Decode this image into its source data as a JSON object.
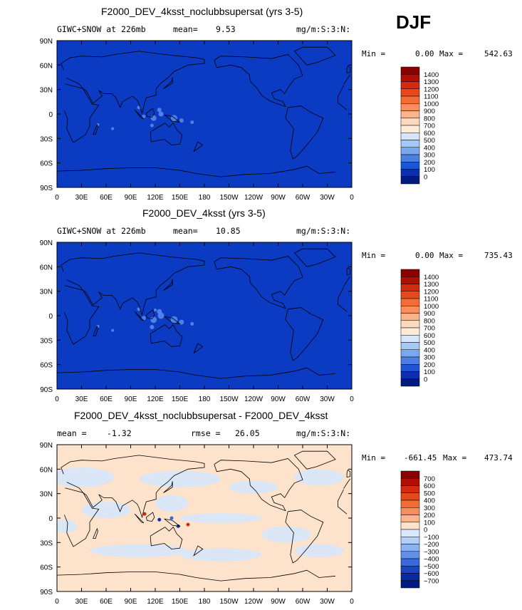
{
  "season": "DJF",
  "chart_data": [
    {
      "type": "heatmap",
      "title": "F2000_DEV_4ksst_noclubbsupersat (yrs 3-5)",
      "field_label": "GIWC+SNOW at 226mb",
      "mean_label": "mean=",
      "mean_value": "9.53",
      "units": "mg/m:S:3:N:",
      "min_label": "Min =",
      "min_value": "0.00",
      "max_label": "Max =",
      "max_value": "542.63",
      "x_ticks": [
        "0",
        "30E",
        "60E",
        "90E",
        "120E",
        "150E",
        "180",
        "150W",
        "120W",
        "90W",
        "60W",
        "30W",
        "0"
      ],
      "y_ticks": [
        "90N",
        "60N",
        "30N",
        "0",
        "30S",
        "60S",
        "90S"
      ],
      "colorbar_labels": [
        "1400",
        "1300",
        "1200",
        "1100",
        "1000",
        "900",
        "800",
        "700",
        "600",
        "500",
        "400",
        "300",
        "200",
        "100",
        "0"
      ],
      "colorbar_colors": [
        "#8b0000",
        "#b00f05",
        "#d42a0e",
        "#e8491c",
        "#f36b35",
        "#f98d5c",
        "#fcb48d",
        "#fdd9bd",
        "#fdebd8",
        "#d6e6fa",
        "#a6c8f5",
        "#7aa7ee",
        "#4a7fe3",
        "#1f55d4",
        "#0b2fb0",
        "#001a80"
      ],
      "background_color": "#0b3bc2"
    },
    {
      "type": "heatmap",
      "title": "F2000_DEV_4ksst (yrs 3-5)",
      "field_label": "GIWC+SNOW at 226mb",
      "mean_label": "mean=",
      "mean_value": "10.85",
      "units": "mg/m:S:3:N:",
      "min_label": "Min =",
      "min_value": "0.00",
      "max_label": "Max =",
      "max_value": "735.43",
      "x_ticks": [
        "0",
        "30E",
        "60E",
        "90E",
        "120E",
        "150E",
        "180",
        "150W",
        "120W",
        "90W",
        "60W",
        "30W",
        "0"
      ],
      "y_ticks": [
        "90N",
        "60N",
        "30N",
        "0",
        "30S",
        "60S",
        "90S"
      ],
      "colorbar_labels": [
        "1400",
        "1300",
        "1200",
        "1100",
        "1000",
        "900",
        "800",
        "700",
        "600",
        "500",
        "400",
        "300",
        "200",
        "100",
        "0"
      ],
      "colorbar_colors": [
        "#8b0000",
        "#b00f05",
        "#d42a0e",
        "#e8491c",
        "#f36b35",
        "#f98d5c",
        "#fcb48d",
        "#fdd9bd",
        "#fdebd8",
        "#d6e6fa",
        "#a6c8f5",
        "#7aa7ee",
        "#4a7fe3",
        "#1f55d4",
        "#0b2fb0",
        "#001a80"
      ],
      "background_color": "#0b3bc2"
    },
    {
      "type": "heatmap",
      "title": "F2000_DEV_4ksst_noclubbsupersat - F2000_DEV_4ksst",
      "field_label": "mean =",
      "mean_value": "-1.32",
      "rmse_label": "rmse =",
      "rmse_value": "26.05",
      "units": "mg/m:S:3:N:",
      "min_label": "Min =",
      "min_value": "-661.45",
      "max_label": "Max =",
      "max_value": "473.74",
      "x_ticks": [
        "0",
        "30E",
        "60E",
        "90E",
        "120E",
        "150E",
        "180",
        "150W",
        "120W",
        "90W",
        "60W",
        "30W",
        "0"
      ],
      "y_ticks": [
        "90N",
        "60N",
        "30N",
        "0",
        "30S",
        "60S",
        "90S"
      ],
      "colorbar_labels": [
        "700",
        "600",
        "500",
        "400",
        "300",
        "200",
        "100",
        "0",
        "−100",
        "−200",
        "−300",
        "−400",
        "−500",
        "−600",
        "−700"
      ],
      "colorbar_colors": [
        "#8b0000",
        "#b00f05",
        "#d42a0e",
        "#e8491c",
        "#f36b35",
        "#f98d5c",
        "#fcb48d",
        "#fde3cc",
        "#d9e8fb",
        "#b4d0f7",
        "#8ab3f1",
        "#5f91e8",
        "#3868da",
        "#1a44c4",
        "#0a2aa0",
        "#001a80"
      ],
      "background_color": "#fde3cc"
    }
  ]
}
